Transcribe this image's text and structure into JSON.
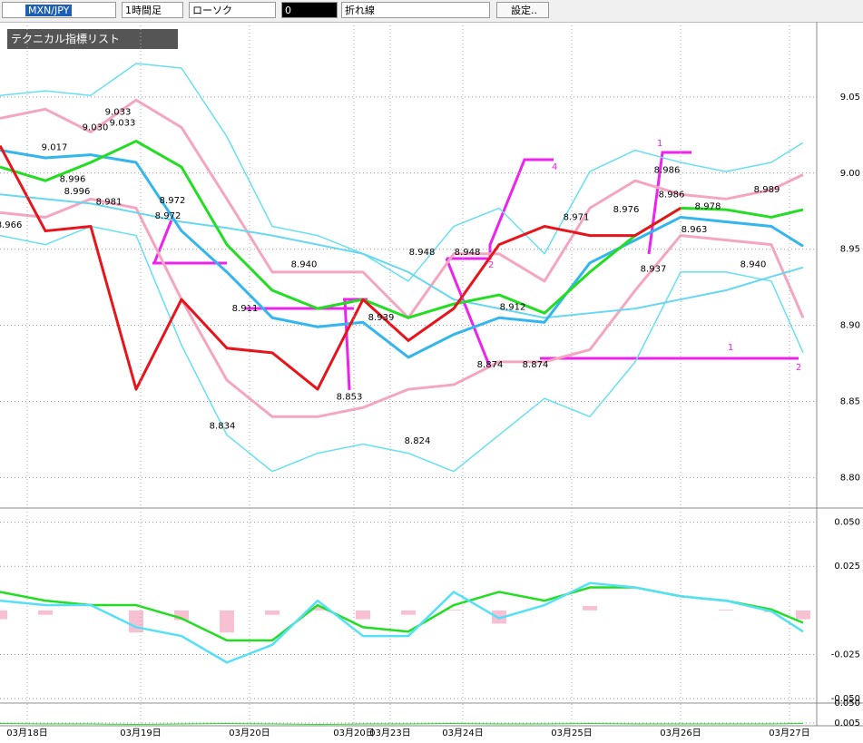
{
  "toolbar": {
    "symbol": "MXN/JPY",
    "timeframe": "1時間足",
    "chart_style": "ローソク",
    "field": "0",
    "line_mode": "折れ線",
    "settings": "設定.."
  },
  "indicator_list": "テクニカル指標リスト",
  "chart_data": [
    {
      "type": "line",
      "xlim": [
        0,
        180
      ],
      "ylim": [
        8.78,
        9.097
      ],
      "yticks": [
        9.05,
        {
          "value": 9,
          "label": "9.00"
        },
        8.95,
        {
          "value": 8.9,
          "label": "8.90"
        },
        8.85,
        {
          "value": 8.8,
          "label": "8.80"
        }
      ],
      "x": [
        0,
        10,
        20,
        30,
        40,
        50,
        60,
        70,
        80,
        90,
        100,
        110,
        120,
        130,
        140,
        150,
        160,
        170,
        177
      ],
      "series": [
        {
          "color": "#66e0f0",
          "width": 1.5,
          "values": [
            9.051,
            9.054,
            9.051,
            9.072,
            9.069,
            9.024,
            8.965,
            8.959,
            8.947,
            8.929,
            8.965,
            8.977,
            8.947,
            9.001,
            9.015,
            9.007,
            9.001,
            9.007,
            9.02
          ]
        },
        {
          "color": "#66e0f0",
          "width": 1.5,
          "values": [
            8.959,
            8.953,
            8.965,
            8.959,
            8.887,
            8.828,
            8.804,
            8.816,
            8.822,
            8.816,
            8.804,
            8.828,
            8.852,
            8.84,
            8.876,
            8.935,
            8.935,
            8.929,
            8.882
          ]
        },
        {
          "color": "#f4a6c0",
          "width": 3,
          "values": [
            9.036,
            9.042,
            9.027,
            9.048,
            9.03,
            8.983,
            8.935,
            8.935,
            8.935,
            8.905,
            8.947,
            8.947,
            8.929,
            8.977,
            8.995,
            8.986,
            8.983,
            8.989,
            8.999
          ]
        },
        {
          "color": "#f4a6c0",
          "width": 3,
          "values": [
            8.974,
            8.971,
            8.983,
            8.977,
            8.917,
            8.864,
            8.84,
            8.84,
            8.846,
            8.858,
            8.861,
            8.876,
            8.876,
            8.884,
            8.923,
            8.959,
            8.956,
            8.953,
            8.905
          ]
        },
        {
          "color": "#66d8f0",
          "width": 2,
          "values": [
            8.986,
            8.983,
            8.98,
            8.974,
            8.968,
            8.964,
            8.959,
            8.953,
            8.947,
            8.935,
            8.917,
            8.911,
            8.905,
            8.908,
            8.911,
            8.917,
            8.923,
            8.932,
            8.938
          ]
        },
        {
          "color": "#33b5ee",
          "width": 3,
          "values": [
            9.015,
            9.01,
            9.012,
            9.007,
            8.962,
            8.935,
            8.905,
            8.899,
            8.902,
            8.879,
            8.894,
            8.905,
            8.902,
            8.941,
            8.956,
            8.971,
            8.968,
            8.965,
            8.952
          ]
        },
        {
          "color": "#22dd22",
          "width": 3,
          "values": [
            9.004,
            8.995,
            9.007,
            9.021,
            9.004,
            8.953,
            8.923,
            8.911,
            8.917,
            8.905,
            8.914,
            8.92,
            8.908,
            8.935,
            8.959,
            8.977,
            8.976,
            8.971,
            8.976
          ]
        },
        {
          "color": "#e8141c",
          "width": 3,
          "values": [
            9.018,
            8.962,
            8.965,
            8.858,
            8.917,
            8.885,
            8.882,
            8.858,
            8.917,
            8.89,
            8.911,
            8.953,
            8.965,
            8.959,
            8.959,
            8.977,
            null,
            null,
            null
          ]
        }
      ],
      "annotations": [
        {
          "x": 26,
          "value": 9.04,
          "label": "9.033"
        },
        {
          "x": 27,
          "value": 9.033,
          "label": "9.033"
        },
        {
          "x": 21,
          "value": 9.03,
          "label": "9.030"
        },
        {
          "x": 12,
          "value": 9.017,
          "label": "9.017"
        },
        {
          "x": 16,
          "value": 8.996,
          "label": "8.996"
        },
        {
          "x": 17,
          "value": 8.988,
          "label": "8.996"
        },
        {
          "x": 24,
          "value": 8.981,
          "label": "8.981"
        },
        {
          "x": 2,
          "value": 8.966,
          "label": "8.966"
        },
        {
          "x": 38,
          "value": 8.982,
          "label": "8.972"
        },
        {
          "x": 37,
          "value": 8.972,
          "label": "8.972"
        },
        {
          "x": 67,
          "value": 8.94,
          "label": "8.940"
        },
        {
          "x": 54,
          "value": 8.911,
          "label": "8.911"
        },
        {
          "x": 84,
          "value": 8.905,
          "label": "8.939"
        },
        {
          "x": 77,
          "value": 8.853,
          "label": "8.853"
        },
        {
          "x": 49,
          "value": 8.834,
          "label": "8.834"
        },
        {
          "x": 92,
          "value": 8.824,
          "label": "8.824"
        },
        {
          "x": 93,
          "value": 8.948,
          "label": "8.948"
        },
        {
          "x": 103,
          "value": 8.948,
          "label": "8.948"
        },
        {
          "x": 108,
          "value": 8.874,
          "label": "8.874"
        },
        {
          "x": 118,
          "value": 8.874,
          "label": "8.874"
        },
        {
          "x": 113,
          "value": 8.912,
          "label": "8.912"
        },
        {
          "x": 127,
          "value": 8.971,
          "label": "8.971"
        },
        {
          "x": 138,
          "value": 8.976,
          "label": "8.976"
        },
        {
          "x": 144,
          "value": 8.937,
          "label": "8.937"
        },
        {
          "x": 148,
          "value": 8.986,
          "label": "8.986"
        },
        {
          "x": 147,
          "value": 9.002,
          "label": "8.986"
        },
        {
          "x": 156,
          "value": 8.978,
          "label": "8.978"
        },
        {
          "x": 153,
          "value": 8.963,
          "label": "8.963"
        },
        {
          "x": 169,
          "value": 8.989,
          "label": "8.989"
        },
        {
          "x": 166,
          "value": 8.94,
          "label": "8.940"
        }
      ],
      "markers": [
        "2",
        "4",
        "1",
        "1",
        "2"
      ]
    },
    {
      "type": "line",
      "xlim": [
        0,
        180
      ],
      "ylim": [
        -0.0525,
        0.058
      ],
      "yticks": [
        {
          "value": 0.05,
          "label": "0.050"
        },
        {
          "value": 0.025,
          "label": "0.025"
        },
        {
          "value": -0.025,
          "label": "-0.025"
        },
        {
          "value": -0.05,
          "label": "-0.050"
        }
      ],
      "x": [
        0,
        10,
        20,
        30,
        40,
        50,
        60,
        70,
        80,
        90,
        100,
        110,
        120,
        130,
        140,
        150,
        160,
        170,
        177
      ],
      "series": [
        {
          "color": "#f4a6c0",
          "style": "bar",
          "values": [
            -0.005,
            -0.0025,
            0,
            -0.0125,
            -0.0055,
            -0.0125,
            -0.0025,
            0.0025,
            -0.005,
            -0.0025,
            0.0005,
            -0.0075,
            0,
            0.0025,
            0,
            0,
            0.0005,
            -0.001,
            -0.005
          ]
        },
        {
          "color": "#22dd22",
          "width": 2.5,
          "values": [
            0.0105,
            0.0055,
            0.003,
            0.003,
            -0.0045,
            -0.017,
            -0.017,
            0.003,
            -0.0095,
            -0.012,
            0.003,
            0.0105,
            0.0055,
            0.013,
            0.013,
            0.008,
            0.0055,
            0.0005,
            -0.007
          ]
        },
        {
          "color": "#55e0f8",
          "width": 2.5,
          "values": [
            0.0055,
            0.003,
            0.003,
            -0.0095,
            -0.0145,
            -0.0295,
            -0.0195,
            0.0055,
            -0.0145,
            -0.0145,
            0.0105,
            -0.0045,
            0.003,
            0.0155,
            0.013,
            0.008,
            0.0055,
            -0.0005,
            -0.012
          ]
        }
      ]
    },
    {
      "type": "line",
      "xlim": [
        0,
        180
      ],
      "ylim": [
        -0.001,
        0.05
      ],
      "yticks": [
        {
          "value": 0.05,
          "label": "0.050"
        },
        {
          "value": 0.005,
          "label": "0.005"
        }
      ],
      "x": [
        0,
        10,
        20,
        30,
        40,
        50,
        60,
        70,
        80,
        90,
        100,
        110,
        120,
        130,
        140,
        150,
        160,
        170,
        177
      ],
      "series": [
        {
          "color": "#22dd22",
          "width": 1,
          "values": [
            0.004,
            0.003,
            0.003,
            0.002,
            0.003,
            0.004,
            0.003,
            0.002,
            0.003,
            0.003,
            0.004,
            0.003,
            0.003,
            0.004,
            0.003,
            0.003,
            0.003,
            0.003,
            0.004
          ]
        }
      ],
      "xticks": [
        {
          "value": 6,
          "label": "03月18日"
        },
        {
          "value": 31,
          "label": "03月19日"
        },
        {
          "value": 55,
          "label": "03月20日"
        },
        {
          "value": 78,
          "label": "03月20日"
        },
        {
          "value": 86,
          "label": "03月23日"
        },
        {
          "value": 102,
          "label": "03月24日"
        },
        {
          "value": 126,
          "label": "03月25日"
        },
        {
          "value": 150,
          "label": "03月26日"
        },
        {
          "value": 174,
          "label": "03月27日"
        }
      ]
    }
  ]
}
